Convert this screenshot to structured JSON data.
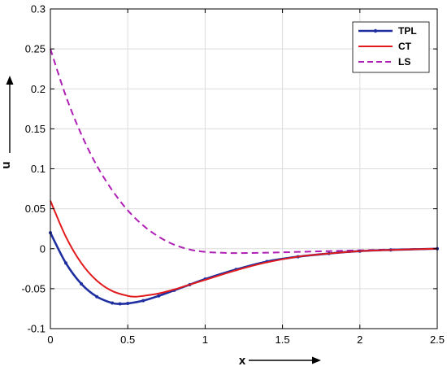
{
  "chart_data": {
    "type": "line",
    "xlabel": "x",
    "ylabel": "u",
    "xlim": [
      0,
      2.5
    ],
    "ylim": [
      -0.1,
      0.3
    ],
    "grid": true,
    "legend_position": "top-right",
    "x_ticks": [
      0,
      0.5,
      1,
      1.5,
      2,
      2.5
    ],
    "x_tick_labels": [
      "0",
      "0.5",
      "1",
      "1.5",
      "2",
      "2.5"
    ],
    "y_ticks": [
      -0.1,
      -0.05,
      0,
      0.05,
      0.1,
      0.15,
      0.2,
      0.25,
      0.3
    ],
    "y_tick_labels": [
      "-0.1",
      "-0.05",
      "0",
      "0.05",
      "0.1",
      "0.15",
      "0.2",
      "0.25",
      "0.3"
    ],
    "series": [
      {
        "name": "TPL",
        "color": "#1f2fa0",
        "style": "solid-with-markers",
        "x": [
          0,
          0.1,
          0.2,
          0.3,
          0.4,
          0.45,
          0.5,
          0.6,
          0.7,
          0.8,
          0.9,
          1.0,
          1.2,
          1.4,
          1.6,
          1.8,
          2.0,
          2.2,
          2.5
        ],
        "y": [
          0.02,
          -0.018,
          -0.044,
          -0.06,
          -0.068,
          -0.069,
          -0.0685,
          -0.065,
          -0.059,
          -0.052,
          -0.045,
          -0.038,
          -0.026,
          -0.016,
          -0.01,
          -0.006,
          -0.003,
          -0.0015,
          0
        ]
      },
      {
        "name": "CT",
        "color": "#e31a1c",
        "style": "solid",
        "x": [
          0,
          0.1,
          0.2,
          0.3,
          0.4,
          0.5,
          0.55,
          0.6,
          0.7,
          0.8,
          0.9,
          1.0,
          1.2,
          1.4,
          1.6,
          1.8,
          2.0,
          2.2,
          2.5
        ],
        "y": [
          0.06,
          0.015,
          -0.018,
          -0.04,
          -0.053,
          -0.059,
          -0.06,
          -0.059,
          -0.056,
          -0.051,
          -0.045,
          -0.039,
          -0.027,
          -0.017,
          -0.01,
          -0.006,
          -0.003,
          -0.0015,
          0
        ]
      },
      {
        "name": "LS",
        "color": "#b01fb5",
        "style": "dashed",
        "x": [
          0,
          0.1,
          0.2,
          0.3,
          0.4,
          0.5,
          0.6,
          0.7,
          0.8,
          0.9,
          1.0,
          1.1,
          1.2,
          1.4,
          1.6,
          1.8,
          2.0,
          2.2,
          2.5
        ],
        "y": [
          0.25,
          0.191,
          0.143,
          0.104,
          0.073,
          0.048,
          0.029,
          0.015,
          0.005,
          -0.001,
          -0.004,
          -0.005,
          -0.0055,
          -0.005,
          -0.004,
          -0.003,
          -0.002,
          -0.001,
          0
        ]
      }
    ]
  }
}
